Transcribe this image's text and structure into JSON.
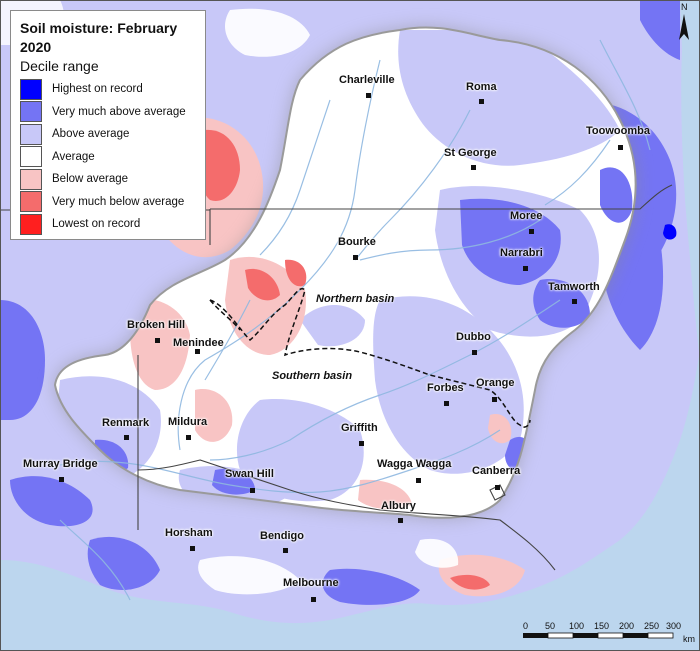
{
  "legend": {
    "title": "Soil moisture: February 2020",
    "subtitle": "Decile range",
    "items": [
      {
        "label": "Highest on record",
        "color": "#0000ff"
      },
      {
        "label": "Very much above average",
        "color": "#7474f4"
      },
      {
        "label": "Above average",
        "color": "#c8c8f8"
      },
      {
        "label": "Average",
        "color": "#ffffff"
      },
      {
        "label": "Below average",
        "color": "#f8c4c4"
      },
      {
        "label": "Very much below average",
        "color": "#f46c6c"
      },
      {
        "label": "Lowest on record",
        "color": "#ff1f1f"
      }
    ]
  },
  "places": [
    {
      "name": "Charleville"
    },
    {
      "name": "Roma"
    },
    {
      "name": "Toowoomba"
    },
    {
      "name": "St George"
    },
    {
      "name": "Moree"
    },
    {
      "name": "Narrabri"
    },
    {
      "name": "Bourke"
    },
    {
      "name": "Tamworth"
    },
    {
      "name": "Broken Hill"
    },
    {
      "name": "Menindee"
    },
    {
      "name": "Dubbo"
    },
    {
      "name": "Forbes"
    },
    {
      "name": "Orange"
    },
    {
      "name": "Renmark"
    },
    {
      "name": "Mildura"
    },
    {
      "name": "Griffith"
    },
    {
      "name": "Murray Bridge"
    },
    {
      "name": "Swan Hill"
    },
    {
      "name": "Wagga Wagga"
    },
    {
      "name": "Canberra"
    },
    {
      "name": "Albury"
    },
    {
      "name": "Horsham"
    },
    {
      "name": "Bendigo"
    },
    {
      "name": "Melbourne"
    }
  ],
  "basins": {
    "northern": "Northern basin",
    "southern": "Southern basin"
  },
  "scale": {
    "ticks": [
      "0",
      "50",
      "100",
      "150",
      "200",
      "250",
      "300"
    ],
    "unit": "km"
  },
  "north_label": "N",
  "colors": {
    "sea": "#bcd6ee",
    "land_outside": "#f2f2f2"
  }
}
